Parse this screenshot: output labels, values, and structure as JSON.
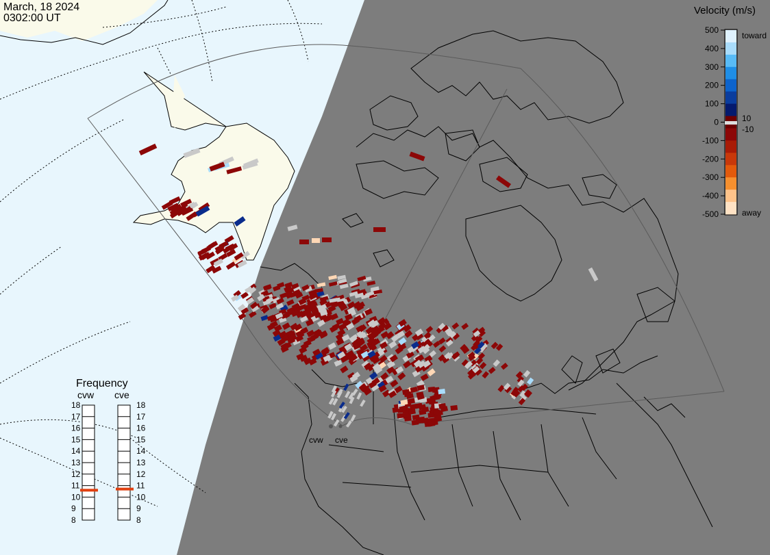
{
  "header": {
    "date": "March, 18 2024",
    "time": "0302:00 UT"
  },
  "colors": {
    "ocean_day": "#e8f6fd",
    "land_day": "#fafaea",
    "night": "#7d7d7d",
    "fov_outline": "#555555",
    "ground_scatter": "#c9c9c9",
    "frequency_marker": "#e04010"
  },
  "colorbar": {
    "title": "Velocity (m/s)",
    "tick_labels": [
      "500",
      "400",
      "300",
      "200",
      "100",
      "0",
      "-100",
      "-200",
      "-300",
      "-400",
      "-500"
    ],
    "small_labels": [
      "10",
      "-10"
    ],
    "end_labels": {
      "top": "toward",
      "bottom": "away"
    },
    "stops": [
      "#dff2fe",
      "#a9dcfb",
      "#58bbf6",
      "#1f8ee6",
      "#0c63cc",
      "#0a3d9e",
      "#041a6e",
      "#6e0000",
      "#8c0707",
      "#a91b06",
      "#c8380a",
      "#e35a0c",
      "#f6902f",
      "#ffc38a",
      "#ffe2c4"
    ]
  },
  "frequency": {
    "title": "Frequency",
    "radars": [
      "cvw",
      "cve"
    ],
    "scale_labels": [
      "18",
      "17",
      "16",
      "15",
      "14",
      "13",
      "12",
      "11",
      "10",
      "9",
      "8"
    ],
    "values": {
      "cvw": 10.6,
      "cve": 10.7
    },
    "range": [
      8,
      18
    ]
  },
  "radar_sites": {
    "labels": [
      "cvw",
      "cve"
    ]
  }
}
